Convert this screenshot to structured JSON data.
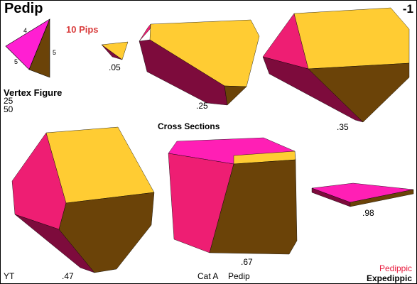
{
  "header": {
    "title": "Pedip",
    "index": "-1"
  },
  "pips_label": "10 Pips",
  "vertex_figure": {
    "label": "Vertex Figure",
    "numbers": [
      "25",
      "50"
    ],
    "edge_labels": [
      "4",
      "5",
      "5"
    ]
  },
  "cross_sections": {
    "label": "Cross Sections",
    "values": [
      ".05",
      ".25",
      ".35",
      ".47",
      ".67",
      ".98"
    ]
  },
  "footer": {
    "left": "YT",
    "category": "Cat A",
    "name": "Pedip",
    "pedippic": "Pedippic",
    "expedippic": "Expedippic"
  },
  "colors": {
    "yellow": "#ffcc33",
    "magenta": "#ff1493",
    "pink": "#ee1e73",
    "brown": "#6b4308",
    "maroon": "#7d0b3c",
    "pedippic": "#e8193c"
  }
}
